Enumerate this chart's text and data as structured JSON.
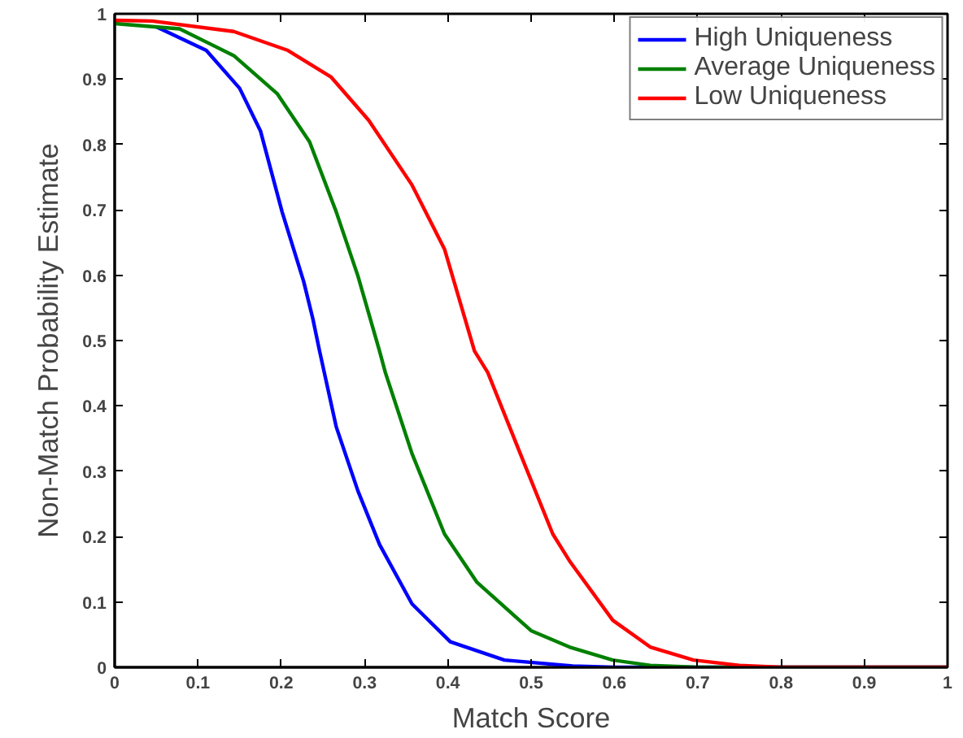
{
  "chart_data": {
    "type": "line",
    "xlabel": "Match Score",
    "ylabel": "Non-Match Probability Estimate",
    "xlim": [
      0,
      1
    ],
    "ylim": [
      0,
      1
    ],
    "xticks": [
      0,
      0.1,
      0.2,
      0.3,
      0.4,
      0.5,
      0.6,
      0.7,
      0.8,
      0.9,
      1
    ],
    "yticks": [
      0,
      0.1,
      0.2,
      0.3,
      0.4,
      0.5,
      0.6,
      0.7,
      0.8,
      0.9,
      1
    ],
    "grid": false,
    "legend": "top right",
    "marker": "none",
    "line_style": "solid",
    "series": [
      {
        "name": "High Uniqueness",
        "color": "#0000ff",
        "x": [
          0.05,
          0.11,
          0.15,
          0.175,
          0.201,
          0.227,
          0.238,
          0.246,
          0.266,
          0.292,
          0.318,
          0.357,
          0.403,
          0.468,
          0.55,
          0.6,
          1
        ],
        "values": [
          0.98,
          0.944,
          0.886,
          0.821,
          0.697,
          0.59,
          0.533,
          0.484,
          0.368,
          0.27,
          0.188,
          0.097,
          0.039,
          0.011,
          0.002,
          0,
          0
        ]
      },
      {
        "name": "Average Uniqueness",
        "color": "#008000",
        "x": [
          0,
          0.078,
          0.143,
          0.195,
          0.234,
          0.266,
          0.292,
          0.318,
          0.325,
          0.357,
          0.396,
          0.435,
          0.5,
          0.546,
          0.598,
          0.643,
          0.7,
          1
        ],
        "values": [
          0.985,
          0.977,
          0.936,
          0.878,
          0.804,
          0.697,
          0.599,
          0.484,
          0.451,
          0.327,
          0.204,
          0.13,
          0.056,
          0.031,
          0.011,
          0.003,
          0,
          0
        ]
      },
      {
        "name": "Low Uniqueness",
        "color": "#ff0000",
        "x": [
          0,
          0.045,
          0.143,
          0.208,
          0.26,
          0.305,
          0.357,
          0.396,
          0.432,
          0.448,
          0.487,
          0.526,
          0.546,
          0.598,
          0.643,
          0.695,
          0.75,
          0.8,
          1
        ],
        "values": [
          0.99,
          0.989,
          0.973,
          0.944,
          0.903,
          0.837,
          0.738,
          0.64,
          0.484,
          0.451,
          0.327,
          0.204,
          0.163,
          0.072,
          0.031,
          0.011,
          0.003,
          0,
          0
        ]
      }
    ]
  }
}
